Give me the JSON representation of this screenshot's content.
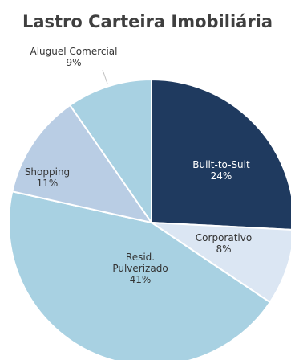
{
  "chart_data": {
    "type": "pie",
    "title": "Lastro Carteira Imobiliária",
    "unit": "%",
    "slices": [
      {
        "label_lines": [
          "Built-to-Suit"
        ],
        "value": 24,
        "value_label": "24%",
        "color": "#1f3a5f",
        "text_color": "#ffffff"
      },
      {
        "label_lines": [
          "Corporativo"
        ],
        "value": 8,
        "value_label": "8%",
        "color": "#dbe6f3",
        "text_color": "#333333"
      },
      {
        "label_lines": [
          "Resid.",
          "Pulverizado"
        ],
        "value": 41,
        "value_label": "41%",
        "color": "#a8d1e2",
        "text_color": "#333333"
      },
      {
        "label_lines": [
          "Shopping"
        ],
        "value": 11,
        "value_label": "11%",
        "color": "#b9cde4",
        "text_color": "#333333"
      },
      {
        "label_lines": [
          "Aluguel Comercial"
        ],
        "value": 9,
        "value_label": "9%",
        "color": "#a8d1e2",
        "text_color": "#333333"
      }
    ]
  }
}
